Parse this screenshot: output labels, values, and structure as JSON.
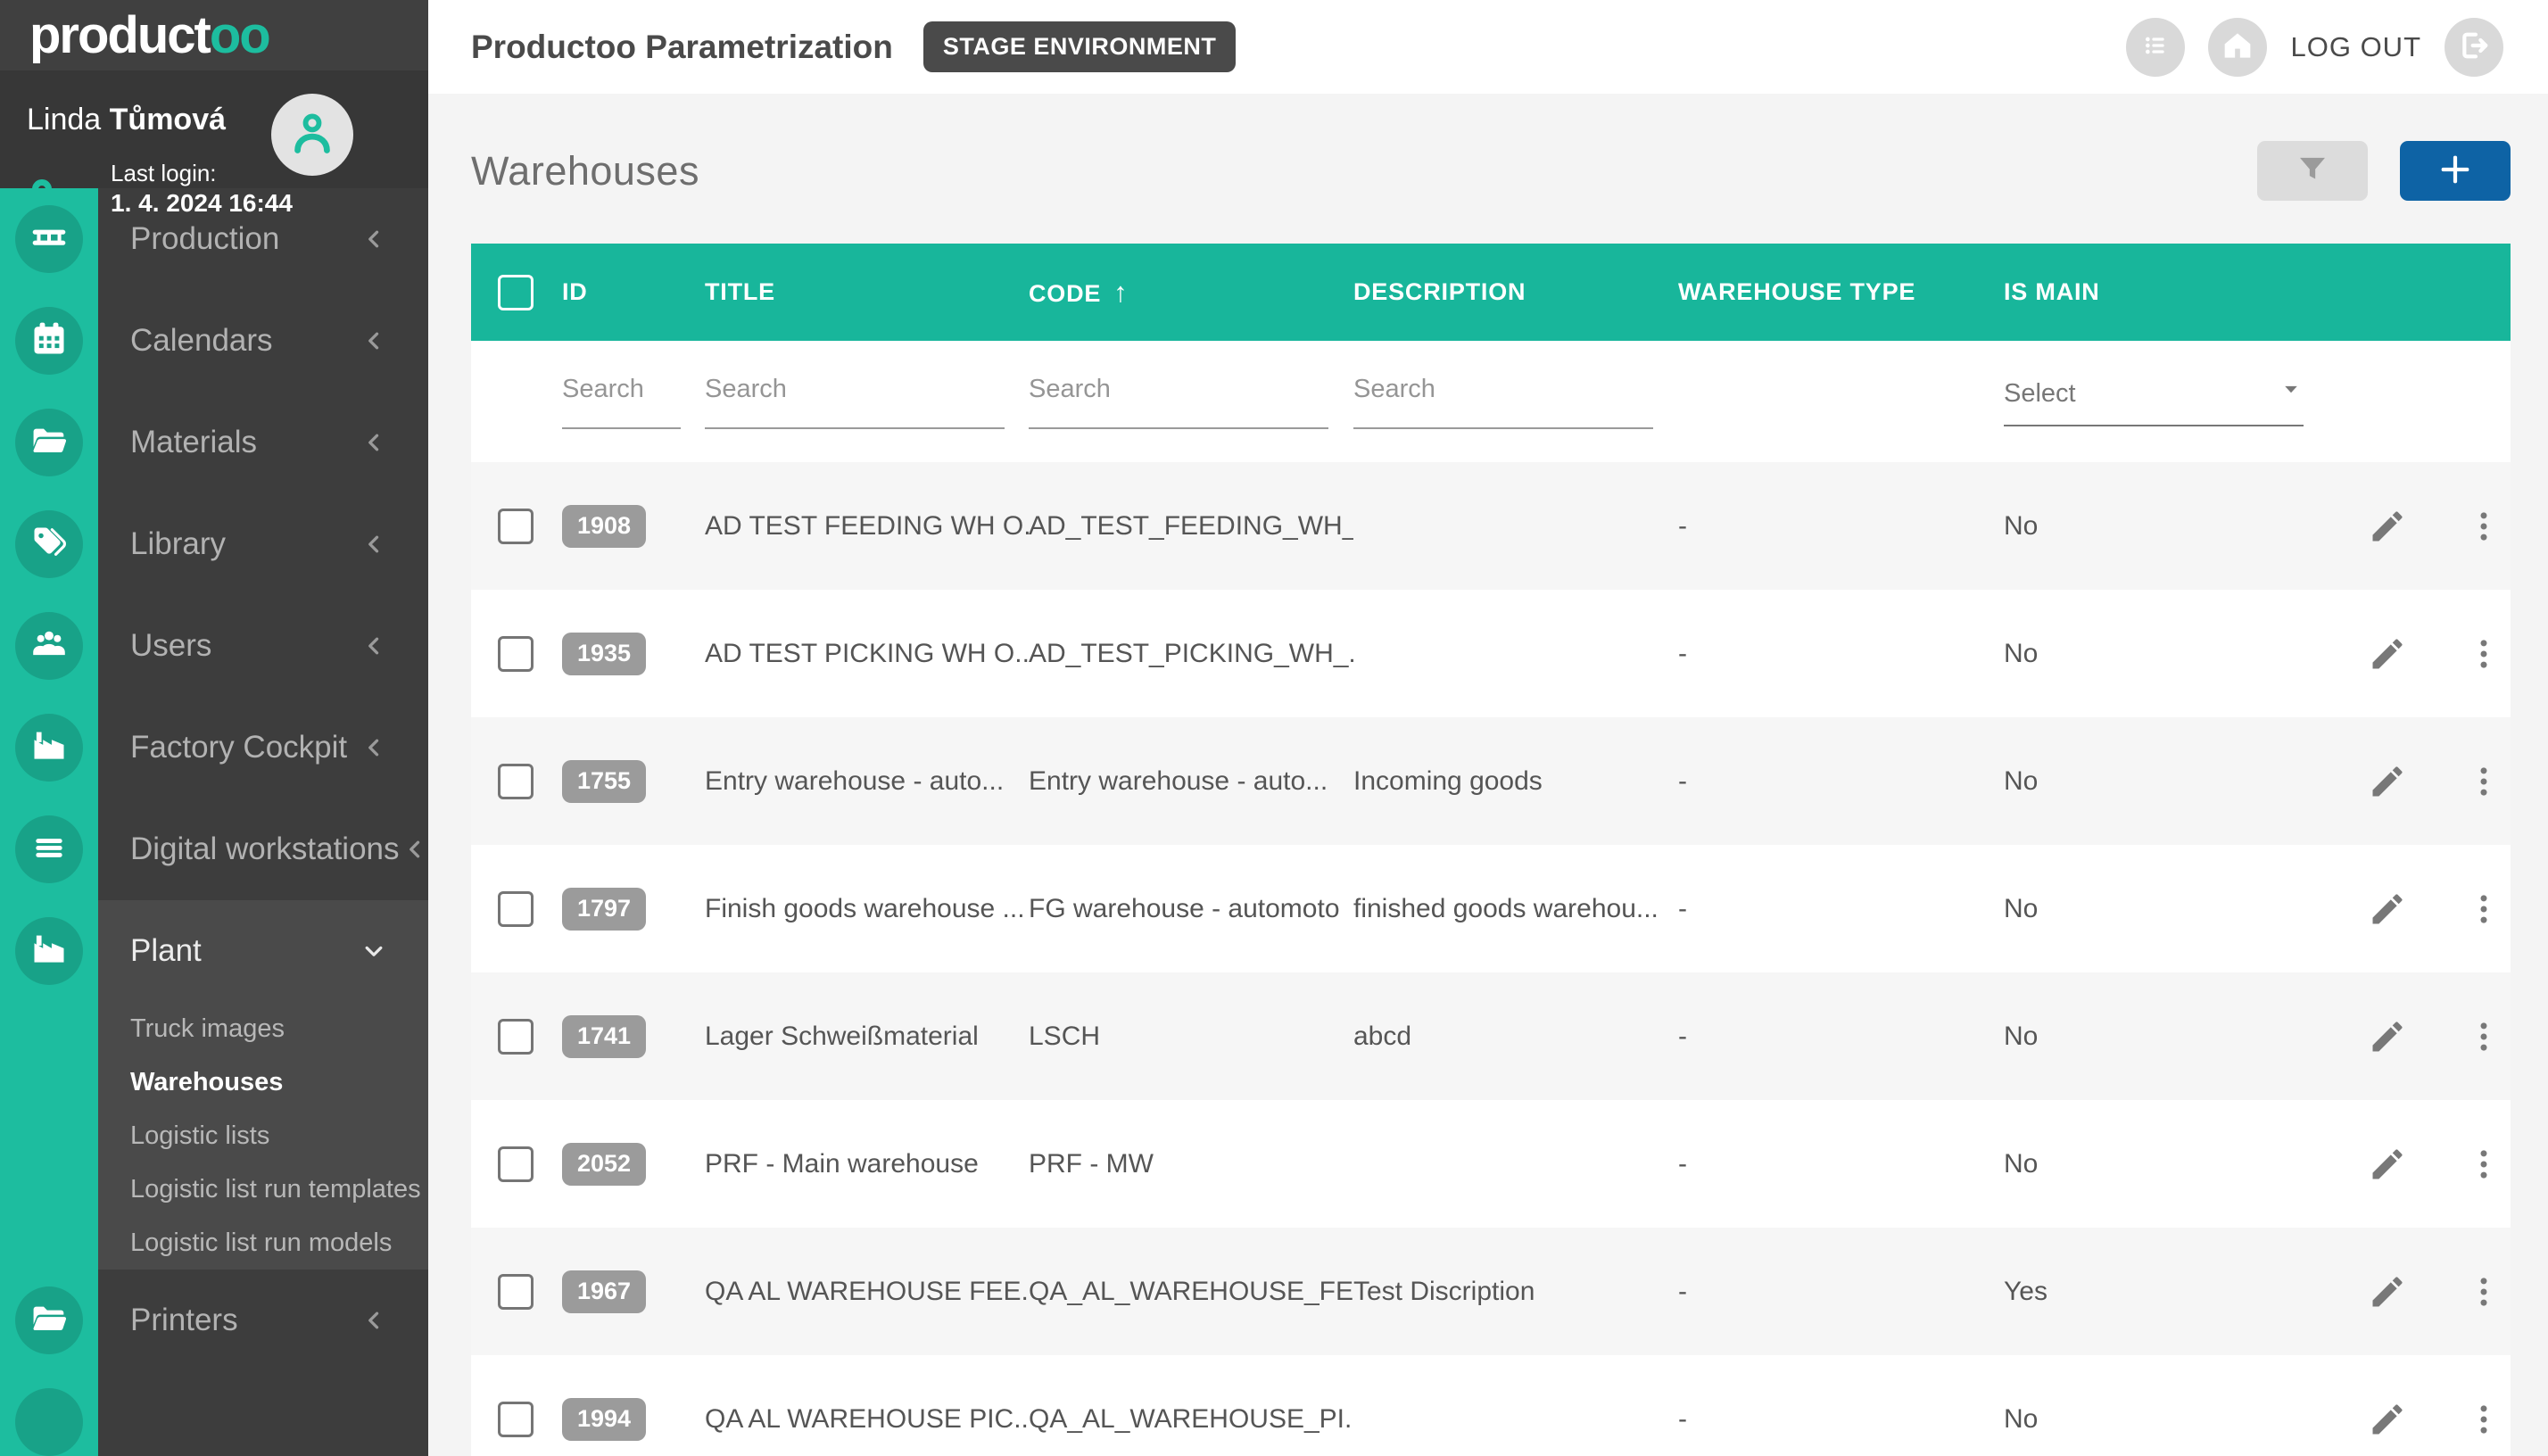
{
  "brand": {
    "name_prefix": "product",
    "name_suffix": "oo"
  },
  "user": {
    "first_name": "Linda",
    "last_name": "Tůmová",
    "last_login_label": "Last login:",
    "last_login_value": "1. 4. 2024 16:44"
  },
  "header": {
    "title": "Productoo Parametrization",
    "environment_badge": "STAGE ENVIRONMENT",
    "logout_label": "LOG OUT"
  },
  "sidebar": {
    "main_items": [
      {
        "label": "Production",
        "icon": "conveyor"
      },
      {
        "label": "Calendars",
        "icon": "calendar"
      },
      {
        "label": "Materials",
        "icon": "folder-open"
      },
      {
        "label": "Library",
        "icon": "tags"
      },
      {
        "label": "Users",
        "icon": "users"
      },
      {
        "label": "Factory Cockpit",
        "icon": "factory"
      },
      {
        "label": "Digital workstations",
        "icon": "lines"
      }
    ],
    "plant": {
      "label": "Plant",
      "icon": "factory",
      "expanded": true,
      "children": [
        {
          "label": "Truck images"
        },
        {
          "label": "Warehouses",
          "active": true
        },
        {
          "label": "Logistic lists"
        },
        {
          "label": "Logistic list run templates"
        },
        {
          "label": "Logistic list run models"
        }
      ]
    },
    "bottom_items": [
      {
        "label": "Printers",
        "icon": "folder-open"
      }
    ]
  },
  "page": {
    "title": "Warehouses"
  },
  "table": {
    "columns": [
      "ID",
      "TITLE",
      "CODE",
      "DESCRIPTION",
      "WAREHOUSE TYPE",
      "IS MAIN"
    ],
    "sort_column": "CODE",
    "sort_direction": "ascending",
    "search_placeholder": "Search",
    "select_placeholder": "Select",
    "rows": [
      {
        "id": "1908",
        "title": "AD TEST FEEDING WH O...",
        "code": "AD_TEST_FEEDING_WH_...",
        "description": "",
        "warehouse_type": "-",
        "is_main": "No"
      },
      {
        "id": "1935",
        "title": "AD TEST PICKING WH O...",
        "code": "AD_TEST_PICKING_WH_...",
        "description": "",
        "warehouse_type": "-",
        "is_main": "No"
      },
      {
        "id": "1755",
        "title": "Entry warehouse - auto...",
        "code": "Entry warehouse - auto...",
        "description": "Incoming goods",
        "warehouse_type": "-",
        "is_main": "No"
      },
      {
        "id": "1797",
        "title": "Finish goods warehouse ...",
        "code": "FG warehouse - automoto",
        "description": "finished goods warehou...",
        "warehouse_type": "-",
        "is_main": "No"
      },
      {
        "id": "1741",
        "title": "Lager Schweißmaterial",
        "code": "LSCH",
        "description": "abcd",
        "warehouse_type": "-",
        "is_main": "No"
      },
      {
        "id": "2052",
        "title": "PRF - Main warehouse",
        "code": "PRF - MW",
        "description": "",
        "warehouse_type": "-",
        "is_main": "No"
      },
      {
        "id": "1967",
        "title": "QA AL WAREHOUSE FEE...",
        "code": "QA_AL_WAREHOUSE_FE...",
        "description": "Test Discription",
        "warehouse_type": "-",
        "is_main": "Yes"
      },
      {
        "id": "1994",
        "title": "QA AL WAREHOUSE PIC...",
        "code": "QA_AL_WAREHOUSE_PI...",
        "description": "",
        "warehouse_type": "-",
        "is_main": "No"
      }
    ]
  },
  "colors": {
    "sidebar_teal": "#1dbd9f",
    "table_header_teal": "#18b69b",
    "add_button_blue": "#0e63a5",
    "badge_dark": "#4a4a4a"
  }
}
